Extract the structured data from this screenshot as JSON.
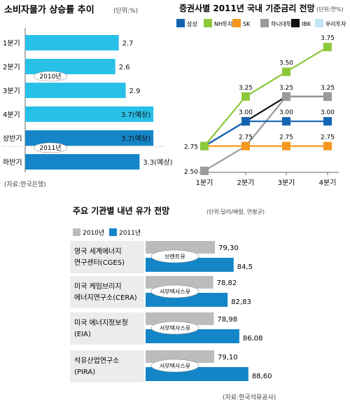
{
  "chart_data": [
    {
      "type": "bar",
      "orientation": "horizontal",
      "title": "소비자물가 상승률 추이",
      "unit": "(단위:%)",
      "categories": [
        "1분기",
        "2분기",
        "3분기",
        "4분기",
        "상반기",
        "하반기"
      ],
      "value_labels": [
        "2.7",
        "2.6",
        "2.9",
        "3.7(예상)",
        "3.7(예상)",
        "3.3(예상)"
      ],
      "values": [
        2.7,
        2.6,
        2.9,
        3.7,
        3.7,
        3.3
      ],
      "group_labels": [
        "2010년",
        "2011년"
      ],
      "colors": [
        "#29c0e8",
        "#29c0e8",
        "#29c0e8",
        "#29c0e8",
        "#1486c8",
        "#1486c8"
      ],
      "source": "(자료:한국은행)",
      "xlim": [
        0,
        4.0
      ]
    },
    {
      "type": "line",
      "title": "증권사별 2011년 국내 기준금리 전망",
      "unit": "(단위:연%)",
      "categories": [
        "1분기",
        "2분기",
        "3분기",
        "4분기"
      ],
      "series": [
        {
          "name": "삼성",
          "color": "#1464b4",
          "values": [
            2.75,
            3.0,
            3.0,
            3.0
          ],
          "labels": [
            "2.75",
            "3.00",
            "3.00",
            "3.00"
          ]
        },
        {
          "name": "NH투자",
          "color": "#8cc83c",
          "values": [
            2.75,
            3.25,
            3.5,
            3.75
          ],
          "labels": [
            "",
            "3.25",
            "3.50",
            "3.75"
          ]
        },
        {
          "name": "SK",
          "color": "#f5961e",
          "values": [
            2.75,
            2.75,
            2.75,
            2.75
          ],
          "labels": [
            "",
            "2.75",
            "2.75",
            "2.75"
          ]
        },
        {
          "name": "하나대투",
          "color": "#9a9a9a",
          "values": [
            2.5,
            2.75,
            3.25,
            3.25
          ],
          "labels": [
            "2.50",
            "",
            "3.25",
            "3.25"
          ]
        },
        {
          "name": "IBK",
          "color": "#111111",
          "values": [
            2.75,
            3.0,
            3.25,
            3.25
          ],
          "labels": [
            "",
            "",
            "",
            ""
          ]
        },
        {
          "name": "우리투자",
          "color": "#bfe6f7",
          "values": [
            2.75,
            3.0,
            3.25,
            3.25
          ],
          "labels": [
            "",
            "",
            "",
            ""
          ]
        }
      ],
      "ylim": [
        2.4,
        3.85
      ]
    },
    {
      "type": "bar",
      "orientation": "horizontal",
      "title": "주요 기관별 내년 유가 전망",
      "unit": "(단위:달러/배럴, 연평균)",
      "legend": [
        {
          "name": "2010년",
          "color": "#bcbcbc"
        },
        {
          "name": "2011년",
          "color": "#1486c8"
        }
      ],
      "categories": [
        {
          "line1": "영국 세계에너지",
          "line2": "연구센터(CGES)",
          "tag": "브렌트유"
        },
        {
          "line1": "미국 케임브리지",
          "line2": "에너지연구소(CERA)",
          "tag": "서부텍사스유"
        },
        {
          "line1": "미국 에너지정보청",
          "line2": "(EIA)",
          "tag": "서부텍사스유"
        },
        {
          "line1": "석유산업연구소",
          "line2": "(PIRA)",
          "tag": "서부텍사스유"
        }
      ],
      "series": [
        {
          "name": "2010년",
          "values": [
            79.3,
            78.82,
            78.98,
            79.1
          ],
          "labels": [
            "79,30",
            "78,82",
            "78,98",
            "79,10"
          ]
        },
        {
          "name": "2011년",
          "values": [
            84.5,
            82.83,
            86.08,
            88.6
          ],
          "labels": [
            "84,5",
            "82,83",
            "86,08",
            "88,60"
          ]
        }
      ],
      "source": "(자료:한국석유공사)",
      "xlim": [
        0,
        95
      ]
    }
  ]
}
